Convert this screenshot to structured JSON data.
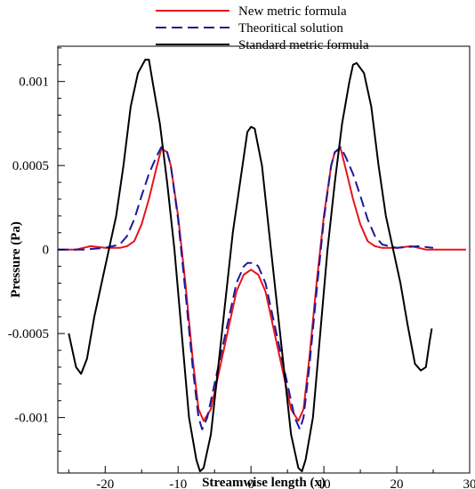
{
  "chart_data": {
    "type": "line",
    "xlabel": "Streamwise length (x)",
    "ylabel": "Pressure (Pa)",
    "xlim": [
      -26.5,
      30
    ],
    "ylim": [
      -0.00133,
      0.00121
    ],
    "x_ticks": [
      -20,
      -10,
      0,
      10,
      20,
      30
    ],
    "x_tick_labels": [
      "-20",
      "-10",
      "0",
      "10",
      "20",
      "30"
    ],
    "y_ticks": [
      -0.001,
      -0.0005,
      0,
      0.0005,
      0.001
    ],
    "y_tick_labels": [
      "-0.001",
      "-0.0005",
      "0",
      "0.0005",
      "0.001"
    ],
    "grid": false,
    "legend_position": "top-center",
    "series": [
      {
        "name": "New metric formula",
        "color": "#e8141c",
        "dash": "solid",
        "points": [
          [
            -26.5,
            0
          ],
          [
            -24,
            0
          ],
          [
            -22,
            2e-05
          ],
          [
            -20,
            1e-05
          ],
          [
            -18,
            1e-05
          ],
          [
            -17,
            2e-05
          ],
          [
            -16,
            5e-05
          ],
          [
            -15,
            0.00015
          ],
          [
            -14,
            0.0003
          ],
          [
            -13,
            0.00048
          ],
          [
            -12.3,
            0.0006
          ],
          [
            -11.5,
            0.00058
          ],
          [
            -11,
            0.0005
          ],
          [
            -10,
            0.0002
          ],
          [
            -9,
            -0.0002
          ],
          [
            -8,
            -0.00065
          ],
          [
            -7.2,
            -0.00095
          ],
          [
            -6.5,
            -0.00102
          ],
          [
            -5.5,
            -0.00095
          ],
          [
            -4.5,
            -0.00075
          ],
          [
            -3,
            -0.00045
          ],
          [
            -2,
            -0.00025
          ],
          [
            -1,
            -0.00015
          ],
          [
            0,
            -0.00012
          ],
          [
            1,
            -0.00015
          ],
          [
            2,
            -0.00025
          ],
          [
            3,
            -0.00045
          ],
          [
            4.5,
            -0.00075
          ],
          [
            5.5,
            -0.00095
          ],
          [
            6.5,
            -0.00102
          ],
          [
            7.2,
            -0.00095
          ],
          [
            8,
            -0.00065
          ],
          [
            9,
            -0.0002
          ],
          [
            10,
            0.0002
          ],
          [
            11,
            0.0005
          ],
          [
            11.5,
            0.00058
          ],
          [
            12.3,
            0.0006
          ],
          [
            13,
            0.00048
          ],
          [
            14,
            0.0003
          ],
          [
            15,
            0.00015
          ],
          [
            16,
            5e-05
          ],
          [
            17,
            2e-05
          ],
          [
            18,
            1e-05
          ],
          [
            20,
            1e-05
          ],
          [
            22,
            2e-05
          ],
          [
            24,
            0
          ],
          [
            26,
            0
          ],
          [
            29.5,
            0
          ]
        ]
      },
      {
        "name": "Theoritical solution",
        "color": "#1a1a9c",
        "dash": "dashed",
        "points": [
          [
            -26.5,
            0
          ],
          [
            -23,
            0
          ],
          [
            -20,
            1e-05
          ],
          [
            -18,
            3e-05
          ],
          [
            -17,
            8e-05
          ],
          [
            -16,
            0.00018
          ],
          [
            -15,
            0.00032
          ],
          [
            -14,
            0.00045
          ],
          [
            -13,
            0.00055
          ],
          [
            -12.3,
            0.00061
          ],
          [
            -11.5,
            0.00058
          ],
          [
            -11,
            0.0005
          ],
          [
            -10,
            0.00018
          ],
          [
            -9,
            -0.00025
          ],
          [
            -8,
            -0.0007
          ],
          [
            -7.2,
            -0.001
          ],
          [
            -6.7,
            -0.00107
          ],
          [
            -6,
            -0.001
          ],
          [
            -5,
            -0.0008
          ],
          [
            -4,
            -0.0006
          ],
          [
            -3,
            -0.0004
          ],
          [
            -2,
            -0.0002
          ],
          [
            -1,
            -0.0001
          ],
          [
            -0.5,
            -8e-05
          ],
          [
            0.5,
            -8e-05
          ],
          [
            1,
            -0.0001
          ],
          [
            2,
            -0.0002
          ],
          [
            3,
            -0.0004
          ],
          [
            4,
            -0.0006
          ],
          [
            5,
            -0.0008
          ],
          [
            6,
            -0.001
          ],
          [
            6.7,
            -0.00107
          ],
          [
            7.2,
            -0.001
          ],
          [
            8,
            -0.0007
          ],
          [
            9,
            -0.00025
          ],
          [
            10,
            0.00018
          ],
          [
            11,
            0.0005
          ],
          [
            11.5,
            0.00058
          ],
          [
            12.3,
            0.00061
          ],
          [
            13,
            0.00055
          ],
          [
            14,
            0.00045
          ],
          [
            15,
            0.00032
          ],
          [
            16,
            0.00018
          ],
          [
            17,
            8e-05
          ],
          [
            18,
            3e-05
          ],
          [
            20,
            1e-05
          ],
          [
            23,
            2e-05
          ],
          [
            25,
            1e-05
          ]
        ]
      },
      {
        "name": "Standard metric formula",
        "color": "#000000",
        "dash": "solid",
        "points": [
          [
            -25,
            -0.0005
          ],
          [
            -24.5,
            -0.0006
          ],
          [
            -24,
            -0.0007
          ],
          [
            -23.3,
            -0.00074
          ],
          [
            -22.5,
            -0.00065
          ],
          [
            -21.5,
            -0.0004
          ],
          [
            -20.5,
            -0.0002
          ],
          [
            -19.5,
            0
          ],
          [
            -18.5,
            0.0002
          ],
          [
            -17.5,
            0.0005
          ],
          [
            -16.5,
            0.00085
          ],
          [
            -15.5,
            0.00105
          ],
          [
            -14.5,
            0.00113
          ],
          [
            -14,
            0.00113
          ],
          [
            -13.5,
            0.001
          ],
          [
            -12.5,
            0.00075
          ],
          [
            -11.5,
            0.0004
          ],
          [
            -10.5,
            0
          ],
          [
            -9.5,
            -0.0005
          ],
          [
            -8.5,
            -0.001
          ],
          [
            -7.5,
            -0.00125
          ],
          [
            -7,
            -0.00132
          ],
          [
            -6.5,
            -0.0013
          ],
          [
            -5.5,
            -0.0011
          ],
          [
            -4.5,
            -0.0007
          ],
          [
            -3.5,
            -0.0003
          ],
          [
            -2.5,
            0.0001
          ],
          [
            -1.5,
            0.0004
          ],
          [
            -0.5,
            0.0007
          ],
          [
            0,
            0.00073
          ],
          [
            0.5,
            0.00072
          ],
          [
            1.5,
            0.0005
          ],
          [
            2.5,
            0.0001
          ],
          [
            3.5,
            -0.0003
          ],
          [
            4.5,
            -0.0007
          ],
          [
            5.5,
            -0.0011
          ],
          [
            6.5,
            -0.0013
          ],
          [
            7,
            -0.00132
          ],
          [
            7.5,
            -0.00125
          ],
          [
            8.5,
            -0.001
          ],
          [
            9.5,
            -0.0005
          ],
          [
            10.5,
            0
          ],
          [
            11.5,
            0.0004
          ],
          [
            12.5,
            0.00075
          ],
          [
            13.5,
            0.001
          ],
          [
            14,
            0.0011
          ],
          [
            14.5,
            0.00111
          ],
          [
            15.5,
            0.00105
          ],
          [
            16.5,
            0.00085
          ],
          [
            17.5,
            0.0005
          ],
          [
            18.5,
            0.0002
          ],
          [
            19.5,
            0
          ],
          [
            20.5,
            -0.0002
          ],
          [
            21.5,
            -0.00045
          ],
          [
            22.5,
            -0.00068
          ],
          [
            23.3,
            -0.00072
          ],
          [
            24,
            -0.0007
          ],
          [
            24.5,
            -0.00055
          ],
          [
            24.8,
            -0.00047
          ]
        ]
      }
    ]
  }
}
